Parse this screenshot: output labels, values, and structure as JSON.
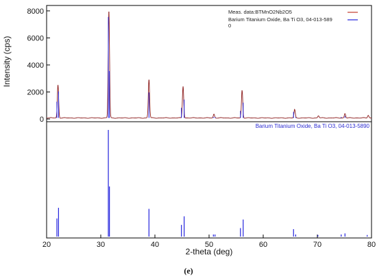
{
  "chart_data": {
    "type": "line",
    "ylabel": "Intensity (cps)",
    "xlabel": "2-theta (deg)",
    "caption": "(e)",
    "xlim": [
      20,
      80
    ],
    "ylim": [
      -200,
      8400
    ],
    "x_ticks": [
      20,
      30,
      40,
      50,
      60,
      70,
      80
    ],
    "y_ticks": [
      0,
      2000,
      4000,
      6000,
      8000
    ],
    "y_tick_labels": [
      "0",
      "2000",
      "4000",
      "6000",
      "8000"
    ],
    "legend": [
      {
        "label": "Meas. data:BTMnO2Nb2O5",
        "color": "#c0392b"
      },
      {
        "label": "Barium Titanium Oxide, Ba Ti O3, 04-013-589\n0",
        "color": "#2222dd"
      }
    ],
    "series": [
      {
        "name": "Meas. data:BTMnO2Nb2O5",
        "color": "#8b1a1a",
        "baseline": 80,
        "peaks": [
          {
            "x": 22.1,
            "y": 2450
          },
          {
            "x": 31.5,
            "y": 7950
          },
          {
            "x": 38.9,
            "y": 2850
          },
          {
            "x": 45.2,
            "y": 2350
          },
          {
            "x": 50.9,
            "y": 280
          },
          {
            "x": 56.1,
            "y": 2050
          },
          {
            "x": 65.8,
            "y": 620
          },
          {
            "x": 70.2,
            "y": 160
          },
          {
            "x": 75.1,
            "y": 330
          },
          {
            "x": 79.4,
            "y": 200
          }
        ]
      }
    ],
    "reference": {
      "name": "Barium Titanium Oxide, Ba Ti O3, 04-013-5890",
      "color": "#2222dd",
      "sticks": [
        {
          "x": 21.9,
          "h": 0.17
        },
        {
          "x": 22.2,
          "h": 0.27
        },
        {
          "x": 31.4,
          "h": 1.0
        },
        {
          "x": 31.6,
          "h": 0.47
        },
        {
          "x": 38.9,
          "h": 0.26
        },
        {
          "x": 44.9,
          "h": 0.11
        },
        {
          "x": 45.4,
          "h": 0.19
        },
        {
          "x": 50.8,
          "h": 0.02
        },
        {
          "x": 51.1,
          "h": 0.02
        },
        {
          "x": 55.8,
          "h": 0.08
        },
        {
          "x": 56.3,
          "h": 0.16
        },
        {
          "x": 65.6,
          "h": 0.07
        },
        {
          "x": 66.0,
          "h": 0.02
        },
        {
          "x": 70.1,
          "h": 0.015
        },
        {
          "x": 74.4,
          "h": 0.02
        },
        {
          "x": 75.1,
          "h": 0.03
        },
        {
          "x": 79.2,
          "h": 0.015
        }
      ]
    }
  }
}
